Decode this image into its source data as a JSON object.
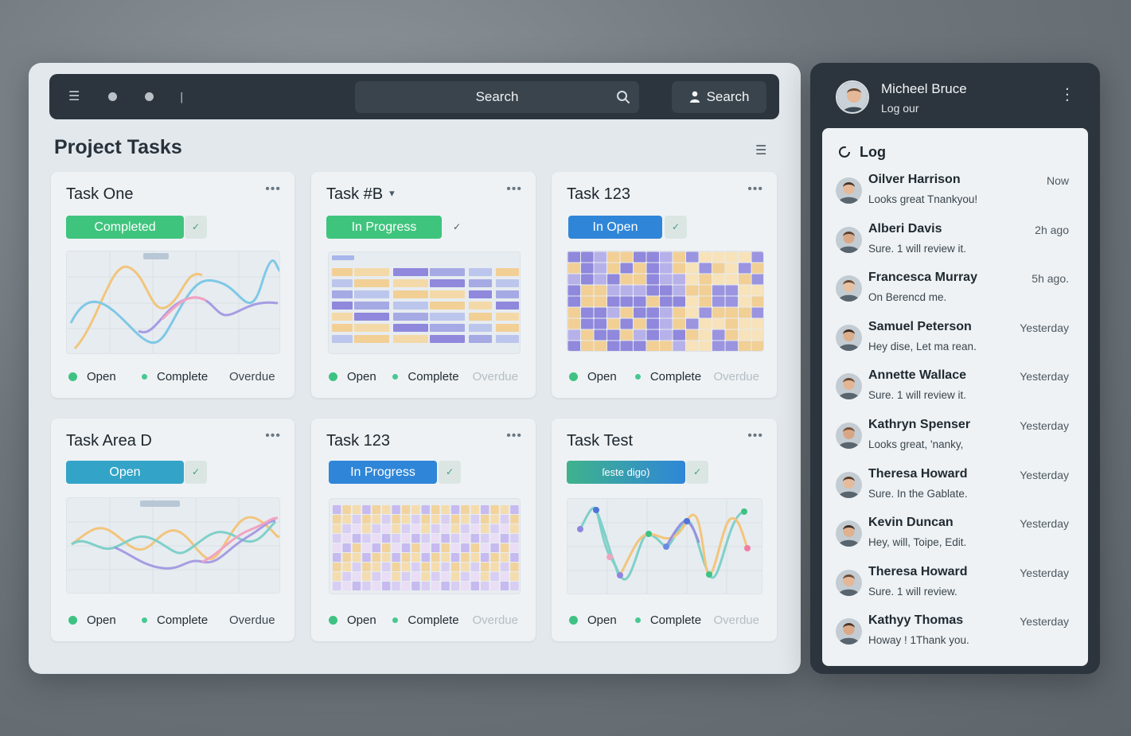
{
  "topbar": {
    "search_placeholder": "Search",
    "search_button_label": "Search",
    "icons": [
      "menu-icon",
      "dot-icon",
      "dot-icon",
      "bar-icon",
      "search-icon",
      "user-icon"
    ]
  },
  "page": {
    "title": "Project Tasks"
  },
  "legend": {
    "open": "Open",
    "complete": "Complete",
    "overdue": "Overdue"
  },
  "cards": [
    {
      "title": "Task One",
      "status": "Completed",
      "status_color": "#3fc47d",
      "chart": "line-a"
    },
    {
      "title": "Task #B",
      "status": "In Progress",
      "status_color": "#3fc47d",
      "chart": "grid-b"
    },
    {
      "title": "Task 123",
      "status": "In Open",
      "status_color": "#2f86d8",
      "chart": "heatmap-c"
    },
    {
      "title": "Task Area D",
      "status": "Open",
      "status_color": "#33a4c8",
      "chart": "line-d"
    },
    {
      "title": "Task 123",
      "status": "In Progress",
      "status_color": "#2f86d8",
      "chart": "bars-e"
    },
    {
      "title": "Task Test",
      "status": "ſeste digo)",
      "status_color": "#3aa7a8",
      "chart": "line-f"
    }
  ],
  "user": {
    "name": "Micheel Bruce",
    "subtitle": "Log our"
  },
  "log": {
    "title": "Log",
    "items": [
      {
        "name": "Oilver Harrison",
        "time": "Now",
        "message": "Looks great Tnankyou!"
      },
      {
        "name": "Alberi Davis",
        "time": "2h ago",
        "message": "Sure. 1 will review it."
      },
      {
        "name": "Francesca Murray",
        "time": "5h ago.",
        "message": "On Berencd me."
      },
      {
        "name": "Samuel Peterson",
        "time": "Yesterday",
        "message": "Hey dise, Let ma rean."
      },
      {
        "name": "Annette Wallace",
        "time": "Yesterday",
        "message": "Sure. 1 will review it."
      },
      {
        "name": "Kathryn Spenser",
        "time": "Yesterday",
        "message": "Looks great, 'nanky,"
      },
      {
        "name": "Theresa Howard",
        "time": "Yesterday",
        "message": "Sure. In the Gablate."
      },
      {
        "name": "Kevin Duncan",
        "time": "Yesterday",
        "message": "Hey, will, Toipe, Edit."
      },
      {
        "name": "Theresa Howard",
        "time": "Yesterday",
        "message": "Sure. 1 will review."
      },
      {
        "name": "Kathyy Thomas",
        "time": "Yesterday",
        "message": "Howay ! 1Thank you."
      }
    ]
  }
}
